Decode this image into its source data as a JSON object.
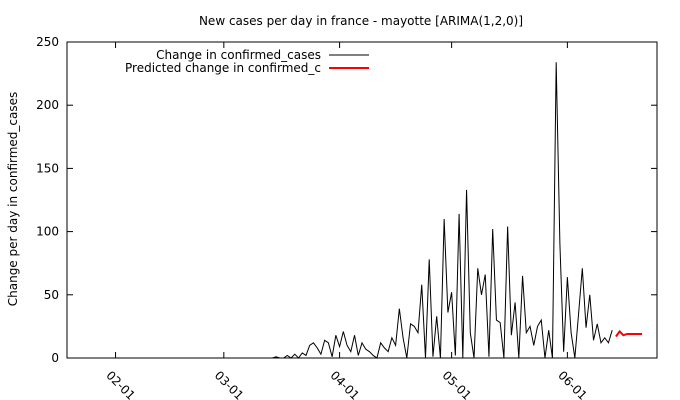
{
  "chart_data": {
    "type": "line",
    "title": "New cases per day in france - mayotte [ARIMA(1,2,0)]",
    "xlabel": "",
    "ylabel": "Change per day in confirmed_cases",
    "xlim": [
      "2020-01-19",
      "2020-06-25"
    ],
    "ylim": [
      0,
      250
    ],
    "x_ticks": [
      "02-01",
      "03-01",
      "04-01",
      "05-01",
      "06-01"
    ],
    "x_tick_dates": [
      "2020-02-01",
      "2020-03-01",
      "2020-04-01",
      "2020-05-01",
      "2020-06-01"
    ],
    "y_ticks": [
      "0",
      "50",
      "100",
      "150",
      "200",
      "250"
    ],
    "grid": false,
    "legend_position": "top-left",
    "series": [
      {
        "name": "Change in confirmed_cases",
        "color": "#000000",
        "points": [
          [
            "2020-03-14",
            0
          ],
          [
            "2020-03-15",
            1
          ],
          [
            "2020-03-16",
            0
          ],
          [
            "2020-03-17",
            0
          ],
          [
            "2020-03-18",
            2
          ],
          [
            "2020-03-19",
            0
          ],
          [
            "2020-03-20",
            3
          ],
          [
            "2020-03-21",
            0
          ],
          [
            "2020-03-22",
            4
          ],
          [
            "2020-03-23",
            2
          ],
          [
            "2020-03-24",
            10
          ],
          [
            "2020-03-25",
            12
          ],
          [
            "2020-03-26",
            8
          ],
          [
            "2020-03-27",
            3
          ],
          [
            "2020-03-28",
            14
          ],
          [
            "2020-03-29",
            12
          ],
          [
            "2020-03-30",
            1
          ],
          [
            "2020-03-31",
            18
          ],
          [
            "2020-04-01",
            9
          ],
          [
            "2020-04-02",
            21
          ],
          [
            "2020-04-03",
            10
          ],
          [
            "2020-04-04",
            5
          ],
          [
            "2020-04-05",
            18
          ],
          [
            "2020-04-06",
            2
          ],
          [
            "2020-04-07",
            12
          ],
          [
            "2020-04-08",
            7
          ],
          [
            "2020-04-09",
            5
          ],
          [
            "2020-04-10",
            2
          ],
          [
            "2020-04-11",
            0
          ],
          [
            "2020-04-12",
            12
          ],
          [
            "2020-04-13",
            8
          ],
          [
            "2020-04-14",
            5
          ],
          [
            "2020-04-15",
            16
          ],
          [
            "2020-04-16",
            10
          ],
          [
            "2020-04-17",
            39
          ],
          [
            "2020-04-18",
            16
          ],
          [
            "2020-04-19",
            0
          ],
          [
            "2020-04-20",
            27
          ],
          [
            "2020-04-21",
            25
          ],
          [
            "2020-04-22",
            20
          ],
          [
            "2020-04-23",
            58
          ],
          [
            "2020-04-24",
            0
          ],
          [
            "2020-04-25",
            78
          ],
          [
            "2020-04-26",
            1
          ],
          [
            "2020-04-27",
            33
          ],
          [
            "2020-04-28",
            0
          ],
          [
            "2020-04-29",
            110
          ],
          [
            "2020-04-30",
            36
          ],
          [
            "2020-05-01",
            52
          ],
          [
            "2020-05-02",
            2
          ],
          [
            "2020-05-03",
            114
          ],
          [
            "2020-05-04",
            0
          ],
          [
            "2020-05-05",
            133
          ],
          [
            "2020-05-06",
            20
          ],
          [
            "2020-05-07",
            0
          ],
          [
            "2020-05-08",
            71
          ],
          [
            "2020-05-09",
            50
          ],
          [
            "2020-05-10",
            66
          ],
          [
            "2020-05-11",
            1
          ],
          [
            "2020-05-12",
            102
          ],
          [
            "2020-05-13",
            30
          ],
          [
            "2020-05-14",
            28
          ],
          [
            "2020-05-15",
            0
          ],
          [
            "2020-05-16",
            104
          ],
          [
            "2020-05-17",
            18
          ],
          [
            "2020-05-18",
            44
          ],
          [
            "2020-05-19",
            0
          ],
          [
            "2020-05-20",
            65
          ],
          [
            "2020-05-21",
            20
          ],
          [
            "2020-05-22",
            25
          ],
          [
            "2020-05-23",
            10
          ],
          [
            "2020-05-24",
            25
          ],
          [
            "2020-05-25",
            30
          ],
          [
            "2020-05-26",
            0
          ],
          [
            "2020-05-27",
            22
          ],
          [
            "2020-05-28",
            0
          ],
          [
            "2020-05-29",
            234
          ],
          [
            "2020-05-30",
            90
          ],
          [
            "2020-05-31",
            5
          ],
          [
            "2020-06-01",
            64
          ],
          [
            "2020-06-02",
            20
          ],
          [
            "2020-06-03",
            0
          ],
          [
            "2020-06-04",
            35
          ],
          [
            "2020-06-05",
            71
          ],
          [
            "2020-06-06",
            24
          ],
          [
            "2020-06-07",
            50
          ],
          [
            "2020-06-08",
            14
          ],
          [
            "2020-06-09",
            27
          ],
          [
            "2020-06-10",
            12
          ],
          [
            "2020-06-11",
            16
          ],
          [
            "2020-06-12",
            12
          ],
          [
            "2020-06-13",
            22
          ]
        ]
      },
      {
        "name": "Predicted change in confirmed_c",
        "color": "#ff0000",
        "points": [
          [
            "2020-06-14",
            17
          ],
          [
            "2020-06-15",
            21
          ],
          [
            "2020-06-16",
            18
          ],
          [
            "2020-06-17",
            19
          ],
          [
            "2020-06-18",
            19
          ],
          [
            "2020-06-19",
            19
          ],
          [
            "2020-06-20",
            19
          ],
          [
            "2020-06-21",
            19
          ]
        ]
      }
    ]
  }
}
